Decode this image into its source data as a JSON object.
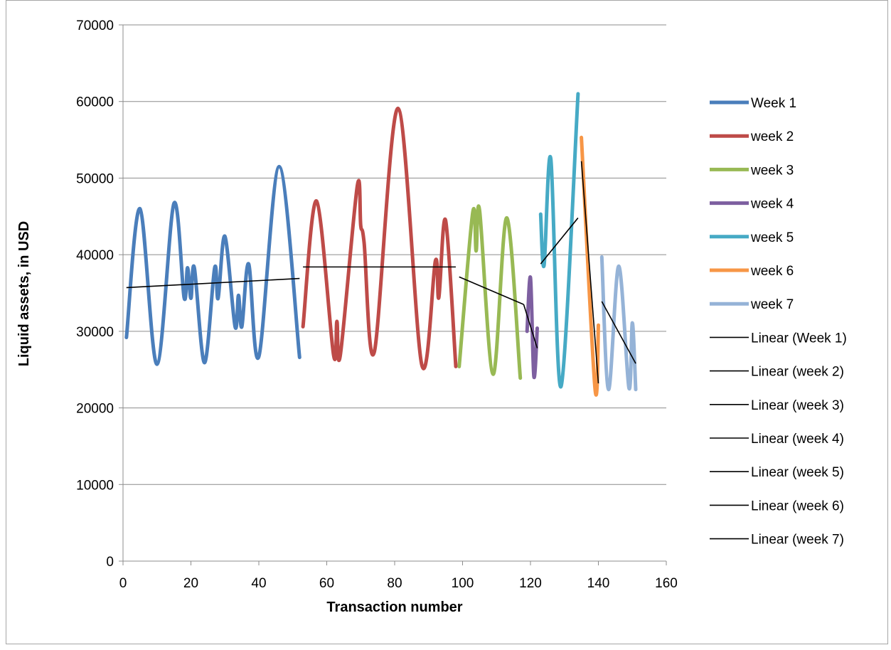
{
  "chart_data": {
    "type": "line",
    "title": "",
    "xlabel": "Transaction number",
    "ylabel": "Liquid assets, in USD",
    "xlim": [
      0,
      160
    ],
    "ylim": [
      0,
      70000
    ],
    "x_ticks": [
      0,
      20,
      40,
      60,
      80,
      100,
      120,
      140,
      160
    ],
    "y_ticks": [
      0,
      10000,
      20000,
      30000,
      40000,
      50000,
      60000,
      70000
    ],
    "grid": "horizontal",
    "legend_position": "right",
    "smoothed": true,
    "series": [
      {
        "name": "Week 1",
        "color": "#4a7ebb",
        "points": [
          [
            1,
            29200
          ],
          [
            5,
            46000
          ],
          [
            10,
            25700
          ],
          [
            15,
            46700
          ],
          [
            18,
            34400
          ],
          [
            19,
            38300
          ],
          [
            20,
            34300
          ],
          [
            21,
            38300
          ],
          [
            24,
            25900
          ],
          [
            27,
            38300
          ],
          [
            28,
            34300
          ],
          [
            30,
            42400
          ],
          [
            33,
            30600
          ],
          [
            34,
            34700
          ],
          [
            35,
            30600
          ],
          [
            37,
            38800
          ],
          [
            40,
            26700
          ],
          [
            46,
            51500
          ],
          [
            52,
            26600
          ]
        ]
      },
      {
        "name": "week 2",
        "color": "#be4b48",
        "points": [
          [
            53,
            30600
          ],
          [
            57,
            47000
          ],
          [
            62,
            26900
          ],
          [
            63,
            31300
          ],
          [
            64,
            26900
          ],
          [
            69,
            49000
          ],
          [
            70,
            43800
          ],
          [
            71,
            41600
          ],
          [
            74,
            27300
          ],
          [
            81,
            59100
          ],
          [
            88,
            25600
          ],
          [
            92,
            39200
          ],
          [
            93,
            34400
          ],
          [
            95,
            44500
          ],
          [
            98,
            25400
          ]
        ]
      },
      {
        "name": "week 3",
        "color": "#98b954",
        "points": [
          [
            99,
            25400
          ],
          [
            103,
            45500
          ],
          [
            104,
            40500
          ],
          [
            105,
            45800
          ],
          [
            109,
            24400
          ],
          [
            113,
            44800
          ],
          [
            117,
            23900
          ]
        ]
      },
      {
        "name": "week 4",
        "color": "#7d5fa0",
        "points": [
          [
            119,
            30000
          ],
          [
            120,
            37000
          ],
          [
            121,
            24100
          ],
          [
            122,
            30400
          ]
        ]
      },
      {
        "name": "week 5",
        "color": "#46aac5",
        "points": [
          [
            123,
            45300
          ],
          [
            124,
            38600
          ],
          [
            126,
            52500
          ],
          [
            129,
            22800
          ],
          [
            134,
            61000
          ]
        ]
      },
      {
        "name": "week 6",
        "color": "#f79646",
        "points": [
          [
            135,
            55300
          ],
          [
            139,
            22600
          ],
          [
            140,
            30800
          ]
        ]
      },
      {
        "name": "week 7",
        "color": "#95b3d7",
        "points": [
          [
            141,
            39700
          ],
          [
            143,
            22400
          ],
          [
            146,
            38500
          ],
          [
            149,
            22600
          ],
          [
            150,
            31100
          ],
          [
            151,
            22400
          ]
        ]
      }
    ],
    "trendlines": [
      {
        "name": "Linear (Week 1)",
        "color": "#000000",
        "x": [
          1,
          52
        ],
        "y": [
          35700,
          36900
        ]
      },
      {
        "name": "Linear (week 2)",
        "color": "#000000",
        "x": [
          53,
          98
        ],
        "y": [
          38400,
          38400
        ]
      },
      {
        "name": "Linear (week 3)",
        "color": "#000000",
        "x": [
          99,
          118
        ],
        "y": [
          37100,
          33500
        ]
      },
      {
        "name": "Linear (week 4)",
        "color": "#000000",
        "x": [
          118,
          122
        ],
        "y": [
          33500,
          27800
        ]
      },
      {
        "name": "Linear (week 5)",
        "color": "#000000",
        "x": [
          123,
          134
        ],
        "y": [
          38800,
          44800
        ]
      },
      {
        "name": "Linear (week 6)",
        "color": "#000000",
        "x": [
          135,
          140
        ],
        "y": [
          52200,
          23200
        ]
      },
      {
        "name": "Linear (week 7)",
        "color": "#000000",
        "x": [
          141,
          151
        ],
        "y": [
          33900,
          25800
        ]
      }
    ]
  }
}
